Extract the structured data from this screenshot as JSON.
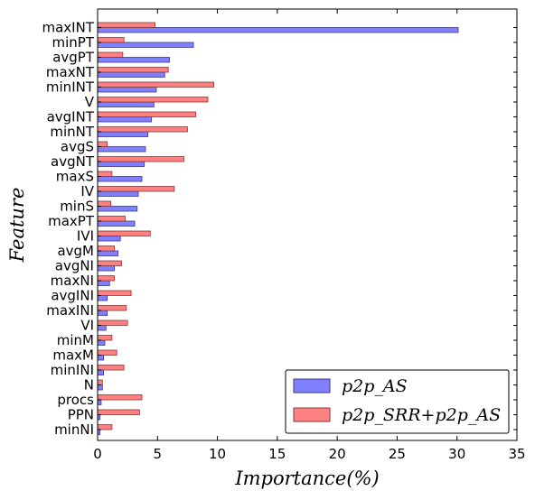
{
  "chart_data": {
    "type": "bar",
    "orientation": "horizontal",
    "categories": [
      "maxINT",
      "minPT",
      "avgPT",
      "maxNT",
      "minINT",
      "V",
      "avgINT",
      "minNT",
      "avgS",
      "avgNT",
      "maxS",
      "IV",
      "minS",
      "maxPT",
      "IVI",
      "avgM",
      "avgNI",
      "maxNI",
      "avgINI",
      "maxINI",
      "VI",
      "minM",
      "maxM",
      "minINI",
      "N",
      "procs",
      "PPN",
      "minNI"
    ],
    "series": [
      {
        "name": "p2p_AS",
        "color": "#8080ff",
        "values": [
          30.1,
          8.0,
          6.0,
          5.6,
          4.9,
          4.7,
          4.5,
          4.2,
          4.0,
          3.9,
          3.7,
          3.4,
          3.3,
          3.1,
          1.9,
          1.7,
          1.4,
          1.0,
          0.8,
          0.8,
          0.7,
          0.6,
          0.5,
          0.5,
          0.4,
          0.3,
          0.2,
          0.2
        ]
      },
      {
        "name": "p2p_SRR+p2p_AS",
        "color": "#ff8080",
        "values": [
          4.8,
          2.2,
          2.1,
          5.9,
          9.7,
          9.2,
          8.2,
          7.5,
          0.8,
          7.2,
          1.2,
          6.4,
          1.1,
          2.3,
          4.4,
          1.4,
          2.0,
          1.4,
          2.8,
          2.4,
          2.5,
          1.2,
          1.6,
          2.2,
          0.4,
          3.7,
          3.5,
          1.2
        ]
      }
    ],
    "xlabel": "Importance(%)",
    "ylabel": "Feature",
    "xlim": [
      0,
      35
    ],
    "xticks": [
      0,
      5,
      10,
      15,
      20,
      25,
      30,
      35
    ],
    "grid": false,
    "legend_position": "lower-right"
  }
}
